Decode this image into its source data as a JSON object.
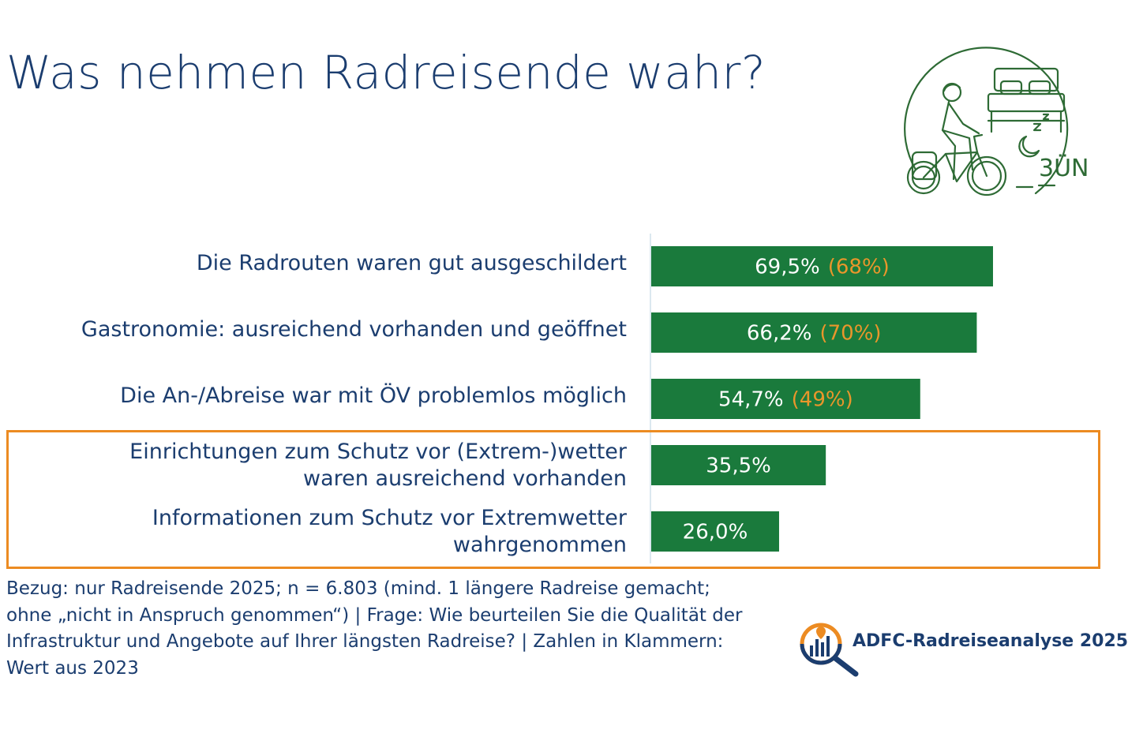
{
  "title": "Was nehmen Radreisende wahr?",
  "chart_data": {
    "type": "bar",
    "orientation": "horizontal",
    "categories": [
      [
        "Die Radrouten waren gut ausgeschildert"
      ],
      [
        "Gastronomie: ausreichend vorhanden und geöffnet"
      ],
      [
        "Die An-/Abreise war mit ÖV problemlos möglich"
      ],
      [
        "Einrichtungen zum Schutz vor (Extrem-)wetter",
        "waren ausreichend vorhanden"
      ],
      [
        "Informationen zum Schutz vor Extremwetter",
        "wahrgenommen"
      ]
    ],
    "series": [
      {
        "values": [
          69.5,
          66.2,
          54.7,
          35.5,
          26.0
        ],
        "labels": [
          "69,5%",
          "66,2%",
          "54,7%",
          "35,5%",
          "26,0%"
        ]
      },
      {
        "values": [
          68,
          70,
          49,
          null,
          null
        ],
        "labels": [
          "(68%)",
          "(70%)",
          "(49%)",
          null,
          null
        ]
      }
    ],
    "xlim": [
      0,
      100
    ],
    "colors": {
      "bar": "#1a7a3c",
      "bar_label": "#ffffff",
      "previous_label": "#e9962b",
      "highlight_border": "#ec8b22"
    },
    "highlighted_rows": [
      3,
      4
    ]
  },
  "footnote": "Bezug: nur Radreisende 2025; n = 6.803 (mind. 1 längere Radreise gemacht; ohne „nicht in Anspruch genommen“) | Frage: Wie beurteilen Sie die Qualität der Infrastruktur und Angebote auf Ihrer längsten Radreise? | Zahlen in Klammern: Wert aus 2023",
  "brand": {
    "name": "ADFC-Radreiseanalyse 2025",
    "logo_icon": "magnifier-bar-chart-icon"
  },
  "illustration": {
    "icon": "cyclist-bed-moon-icon",
    "text": "3ÜN"
  }
}
